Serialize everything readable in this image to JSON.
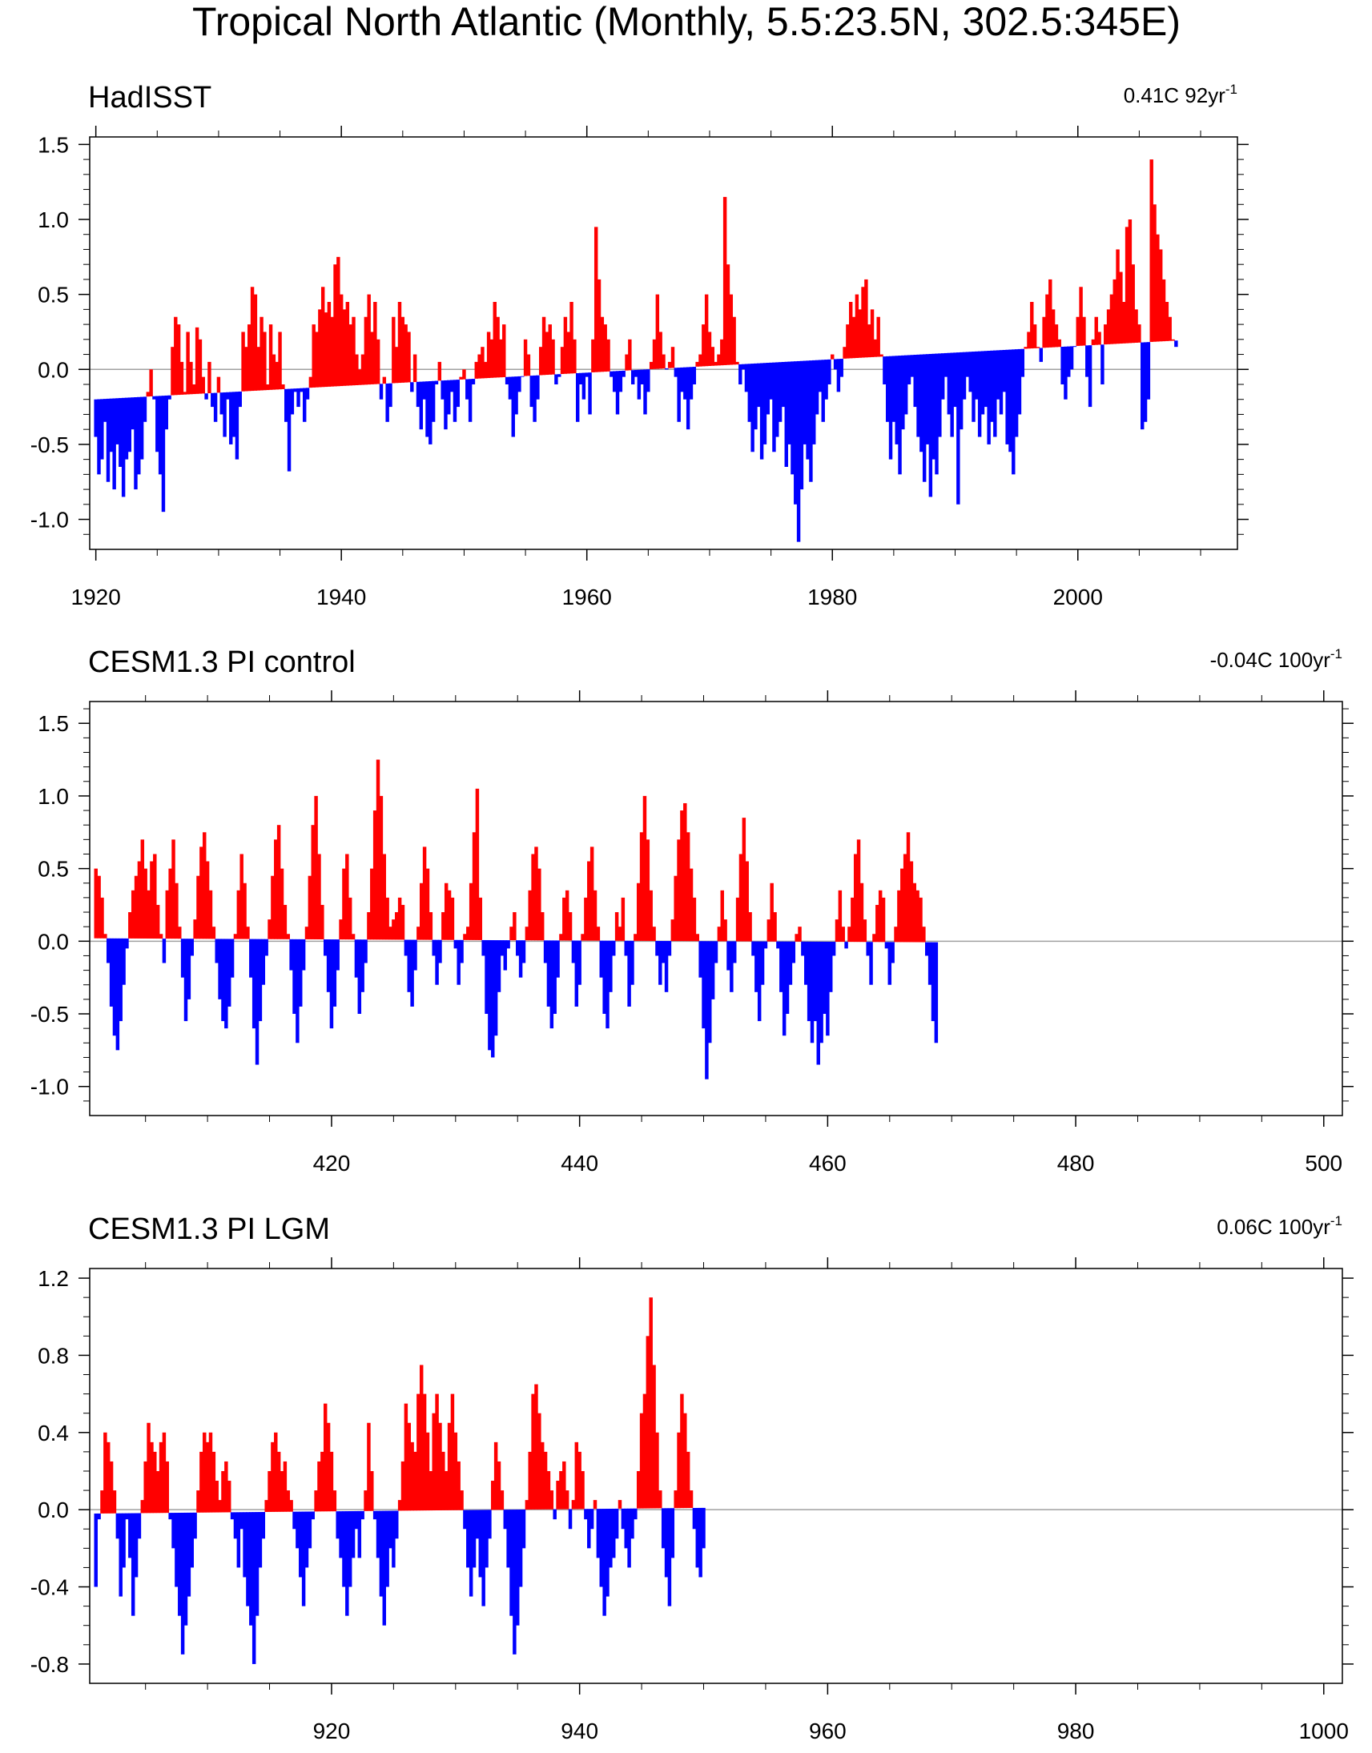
{
  "title": "Tropical North Atlantic (Monthly, 5.5:23.5N, 302.5:345E)",
  "colors": {
    "positive": "#ff0000",
    "negative": "#0000ff",
    "zero_line": "#a0a0a0",
    "frame": "#000000"
  },
  "chart_data": [
    {
      "type": "area",
      "title": "HadISST",
      "trend_label": "0.41C 92yr",
      "trend_label_sup": "-1",
      "trend_total_c": 0.41,
      "xlim": [
        1919.5,
        2013
      ],
      "ylim": [
        -1.2,
        1.55
      ],
      "x_ticks": [
        1920,
        1940,
        1960,
        1980,
        2000
      ],
      "x_tick_labels": [
        "1920",
        "1940",
        "1960",
        "1980",
        "2000"
      ],
      "x_minor_step": 5,
      "y_ticks": [
        -1.0,
        -0.5,
        0.0,
        0.5,
        1.0,
        1.5
      ],
      "y_tick_labels": [
        "-1.0",
        "-0.5",
        "0.0",
        "0.5",
        "1.0",
        "1.5"
      ],
      "y_minor_step": 0.1,
      "baseline": {
        "x": [
          1920.0,
          2012.0
        ],
        "y": [
          -0.2,
          0.21
        ]
      },
      "series": [
        {
          "name": "monthly anomaly",
          "x_start": 1920.0,
          "step_years": 0.25,
          "values": [
            -0.45,
            -0.7,
            -0.6,
            -0.35,
            -0.75,
            -0.55,
            -0.8,
            -0.5,
            -0.65,
            -0.85,
            -0.6,
            -0.55,
            -0.4,
            -0.8,
            -0.7,
            -0.6,
            -0.35,
            -0.15,
            0.0,
            -0.2,
            -0.55,
            -0.7,
            -0.95,
            -0.4,
            -0.2,
            0.15,
            0.35,
            0.3,
            0.05,
            -0.15,
            0.25,
            0.05,
            -0.1,
            0.28,
            0.2,
            -0.05,
            -0.2,
            0.05,
            -0.25,
            -0.35,
            -0.05,
            -0.3,
            -0.45,
            -0.2,
            -0.5,
            -0.45,
            -0.6,
            -0.25,
            0.25,
            0.15,
            0.3,
            0.55,
            0.5,
            0.15,
            0.35,
            0.25,
            -0.1,
            0.3,
            0.1,
            0.05,
            0.25,
            -0.1,
            -0.35,
            -0.68,
            -0.3,
            -0.15,
            -0.25,
            -0.15,
            -0.35,
            -0.2,
            -0.05,
            0.3,
            0.25,
            0.4,
            0.55,
            0.38,
            0.45,
            0.35,
            0.7,
            0.75,
            0.5,
            0.4,
            0.45,
            0.3,
            0.35,
            0.1,
            0.0,
            0.1,
            0.35,
            0.5,
            0.25,
            0.45,
            0.2,
            -0.2,
            -0.05,
            -0.35,
            -0.25,
            0.35,
            0.15,
            0.45,
            0.35,
            0.3,
            0.25,
            -0.15,
            0.1,
            -0.25,
            -0.4,
            -0.2,
            -0.45,
            -0.5,
            -0.35,
            -0.1,
            0.05,
            -0.2,
            -0.4,
            -0.3,
            -0.15,
            -0.35,
            -0.25,
            -0.05,
            0.0,
            -0.2,
            -0.35,
            -0.1,
            0.05,
            0.1,
            0.15,
            0.05,
            0.25,
            0.2,
            0.45,
            0.35,
            0.2,
            0.3,
            -0.1,
            -0.2,
            -0.45,
            -0.3,
            -0.15,
            -0.05,
            0.2,
            0.1,
            -0.25,
            -0.35,
            -0.2,
            0.15,
            0.35,
            0.25,
            0.3,
            0.2,
            -0.1,
            -0.05,
            0.15,
            0.35,
            0.25,
            0.45,
            0.2,
            -0.35,
            -0.1,
            -0.2,
            -0.05,
            -0.3,
            0.2,
            0.95,
            0.6,
            0.35,
            0.3,
            0.2,
            -0.05,
            -0.15,
            -0.3,
            -0.15,
            -0.05,
            0.1,
            0.2,
            -0.1,
            -0.05,
            -0.2,
            -0.1,
            -0.3,
            -0.15,
            0.05,
            0.2,
            0.5,
            0.25,
            0.1,
            0.0,
            0.05,
            0.15,
            -0.05,
            -0.35,
            -0.15,
            -0.2,
            -0.4,
            -0.2,
            -0.1,
            0.05,
            0.1,
            0.3,
            0.5,
            0.25,
            0.15,
            0.05,
            0.1,
            0.2,
            1.15,
            0.7,
            0.5,
            0.35,
            0.05,
            -0.1,
            0.0,
            -0.15,
            -0.35,
            -0.55,
            -0.4,
            -0.25,
            -0.6,
            -0.5,
            -0.3,
            -0.2,
            -0.55,
            -0.45,
            -0.35,
            -0.25,
            -0.65,
            -0.5,
            -0.7,
            -0.9,
            -1.15,
            -0.8,
            -0.5,
            -0.6,
            -0.75,
            -0.5,
            -0.3,
            -0.15,
            -0.35,
            -0.2,
            -0.1,
            0.1,
            0.0,
            -0.15,
            -0.05,
            0.15,
            0.3,
            0.45,
            0.35,
            0.5,
            0.4,
            0.55,
            0.6,
            0.3,
            0.4,
            0.2,
            0.35,
            0.1,
            -0.1,
            -0.35,
            -0.6,
            -0.35,
            -0.5,
            -0.7,
            -0.4,
            -0.3,
            -0.1,
            -0.05,
            -0.25,
            -0.45,
            -0.55,
            -0.75,
            -0.5,
            -0.85,
            -0.6,
            -0.7,
            -0.45,
            -0.2,
            -0.05,
            -0.3,
            -0.45,
            -0.25,
            -0.9,
            -0.4,
            -0.2,
            -0.05,
            -0.15,
            -0.35,
            -0.2,
            -0.45,
            -0.3,
            -0.25,
            -0.5,
            -0.35,
            -0.45,
            -0.2,
            -0.3,
            -0.15,
            -0.5,
            -0.55,
            -0.7,
            -0.45,
            -0.3,
            -0.05,
            0.15,
            0.25,
            0.45,
            0.3,
            0.15,
            0.05,
            0.35,
            0.5,
            0.6,
            0.4,
            0.3,
            0.2,
            -0.1,
            -0.2,
            -0.05,
            0.0,
            0.15,
            0.35,
            0.55,
            0.35,
            -0.05,
            -0.25,
            0.2,
            0.35,
            0.25,
            -0.1,
            0.3,
            0.4,
            0.5,
            0.6,
            0.8,
            0.65,
            0.45,
            0.95,
            1.0,
            0.7,
            0.4,
            0.3,
            -0.4,
            -0.35,
            -0.2,
            1.4,
            1.1,
            0.9,
            0.8,
            0.6,
            0.45,
            0.35,
            0.2,
            0.15
          ]
        }
      ]
    },
    {
      "type": "area",
      "title": "CESM1.3 PI control",
      "trend_label": "-0.04C 100yr",
      "trend_label_sup": "-1",
      "trend_total_c": -0.04,
      "xlim": [
        400.5,
        501.5
      ],
      "ylim": [
        -1.2,
        1.65
      ],
      "x_ticks": [
        420,
        440,
        460,
        480,
        500
      ],
      "x_tick_labels": [
        "420",
        "440",
        "460",
        "480",
        "500"
      ],
      "x_minor_step": 5,
      "y_ticks": [
        -1.0,
        -0.5,
        0.0,
        0.5,
        1.0,
        1.5
      ],
      "y_tick_labels": [
        "-1.0",
        "-0.5",
        "0.0",
        "0.5",
        "1.0",
        "1.5"
      ],
      "y_minor_step": 0.1,
      "baseline": {
        "x": [
          401.0,
          501.0
        ],
        "y": [
          0.02,
          -0.02
        ]
      },
      "series": [
        {
          "name": "monthly anomaly",
          "x_start": 401.0,
          "step_years": 0.25,
          "values": [
            0.5,
            0.45,
            0.3,
            0.05,
            -0.15,
            -0.45,
            -0.65,
            -0.75,
            -0.55,
            -0.3,
            -0.05,
            0.2,
            0.35,
            0.45,
            0.55,
            0.7,
            0.5,
            0.35,
            0.55,
            0.6,
            0.25,
            0.05,
            -0.15,
            0.35,
            0.5,
            0.7,
            0.4,
            0.1,
            -0.25,
            -0.55,
            -0.4,
            -0.1,
            0.15,
            0.45,
            0.65,
            0.75,
            0.55,
            0.35,
            0.1,
            -0.15,
            -0.4,
            -0.55,
            -0.6,
            -0.45,
            -0.25,
            0.05,
            0.35,
            0.6,
            0.4,
            0.1,
            -0.25,
            -0.6,
            -0.85,
            -0.55,
            -0.3,
            -0.1,
            0.15,
            0.45,
            0.7,
            0.8,
            0.5,
            0.25,
            0.05,
            -0.2,
            -0.5,
            -0.7,
            -0.45,
            -0.2,
            0.1,
            0.45,
            0.8,
            1.0,
            0.6,
            0.25,
            -0.1,
            -0.35,
            -0.6,
            -0.45,
            -0.2,
            0.15,
            0.5,
            0.6,
            0.3,
            0.05,
            -0.25,
            -0.5,
            -0.35,
            -0.15,
            0.2,
            0.5,
            0.9,
            1.25,
            1.0,
            0.6,
            0.3,
            0.1,
            0.15,
            0.2,
            0.3,
            0.25,
            -0.1,
            -0.35,
            -0.45,
            -0.2,
            0.1,
            0.4,
            0.65,
            0.5,
            0.2,
            -0.1,
            -0.3,
            -0.15,
            0.2,
            0.4,
            0.35,
            0.3,
            -0.05,
            -0.3,
            -0.15,
            0.05,
            0.1,
            0.4,
            0.75,
            1.05,
            0.3,
            -0.1,
            -0.5,
            -0.75,
            -0.8,
            -0.65,
            -0.35,
            -0.1,
            -0.2,
            -0.05,
            0.1,
            0.2,
            -0.1,
            -0.25,
            -0.15,
            0.1,
            0.35,
            0.6,
            0.65,
            0.5,
            0.2,
            -0.15,
            -0.45,
            -0.6,
            -0.5,
            -0.25,
            0.05,
            0.3,
            0.35,
            0.2,
            -0.15,
            -0.45,
            -0.3,
            0.05,
            0.3,
            0.55,
            0.65,
            0.35,
            0.1,
            -0.25,
            -0.5,
            -0.6,
            -0.35,
            -0.1,
            0.2,
            0.1,
            0.3,
            -0.1,
            -0.45,
            -0.3,
            0.05,
            0.4,
            0.75,
            1.0,
            0.7,
            0.35,
            0.1,
            -0.1,
            -0.3,
            -0.15,
            -0.35,
            -0.1,
            0.15,
            0.45,
            0.7,
            0.9,
            0.95,
            0.75,
            0.5,
            0.3,
            0.05,
            -0.25,
            -0.6,
            -0.95,
            -0.7,
            -0.4,
            -0.15,
            0.1,
            0.35,
            0.15,
            -0.2,
            -0.35,
            -0.15,
            0.3,
            0.6,
            0.85,
            0.55,
            0.2,
            -0.1,
            -0.35,
            -0.55,
            -0.3,
            -0.05,
            0.15,
            0.4,
            0.2,
            -0.05,
            -0.35,
            -0.65,
            -0.5,
            -0.3,
            -0.15,
            0.05,
            0.1,
            -0.1,
            -0.3,
            -0.55,
            -0.7,
            -0.55,
            -0.85,
            -0.7,
            -0.5,
            -0.65,
            -0.35,
            -0.1,
            0.15,
            0.35,
            0.1,
            -0.05,
            0.1,
            0.3,
            0.6,
            0.7,
            0.4,
            0.15,
            -0.1,
            -0.3,
            0.05,
            0.25,
            0.35,
            0.3,
            -0.05,
            -0.3,
            -0.15,
            0.1,
            0.35,
            0.5,
            0.6,
            0.75,
            0.55,
            0.4,
            0.35,
            0.3,
            0.1,
            -0.1,
            -0.3,
            -0.55,
            -0.7
          ]
        }
      ]
    },
    {
      "type": "area",
      "title": "CESM1.3 PI LGM",
      "trend_label": "0.06C 100yr",
      "trend_label_sup": "-1",
      "trend_total_c": 0.06,
      "xlim": [
        900.5,
        1001.5
      ],
      "ylim": [
        -0.9,
        1.25
      ],
      "x_ticks": [
        920,
        940,
        960,
        980,
        1000
      ],
      "x_tick_labels": [
        "920",
        "940",
        "960",
        "980",
        "1000"
      ],
      "x_minor_step": 5,
      "y_ticks": [
        -0.8,
        -0.4,
        0.0,
        0.4,
        0.8,
        1.2
      ],
      "y_tick_labels": [
        "-0.8",
        "-0.4",
        "0.0",
        "0.4",
        "0.8",
        "1.2"
      ],
      "y_minor_step": 0.1,
      "baseline": {
        "x": [
          901.0,
          1001.0
        ],
        "y": [
          -0.02,
          0.04
        ]
      },
      "series": [
        {
          "name": "monthly anomaly",
          "x_start": 901.0,
          "step_years": 0.25,
          "values": [
            -0.4,
            -0.05,
            0.1,
            0.4,
            0.35,
            0.25,
            0.1,
            -0.15,
            -0.45,
            -0.3,
            -0.05,
            -0.25,
            -0.55,
            -0.35,
            -0.15,
            0.05,
            0.25,
            0.45,
            0.35,
            0.3,
            0.2,
            0.35,
            0.4,
            0.25,
            -0.05,
            -0.2,
            -0.4,
            -0.55,
            -0.75,
            -0.6,
            -0.45,
            -0.3,
            -0.15,
            0.1,
            0.3,
            0.4,
            0.35,
            0.4,
            0.3,
            0.15,
            0.05,
            0.2,
            0.25,
            0.15,
            -0.05,
            -0.15,
            -0.3,
            -0.1,
            -0.35,
            -0.5,
            -0.6,
            -0.8,
            -0.55,
            -0.3,
            -0.15,
            0.05,
            0.2,
            0.35,
            0.4,
            0.3,
            0.2,
            0.25,
            0.1,
            0.05,
            -0.1,
            -0.2,
            -0.35,
            -0.5,
            -0.3,
            -0.2,
            -0.05,
            0.1,
            0.25,
            0.3,
            0.55,
            0.45,
            0.3,
            0.1,
            -0.15,
            -0.25,
            -0.4,
            -0.55,
            -0.4,
            -0.25,
            -0.1,
            -0.25,
            -0.05,
            0.1,
            0.45,
            0.2,
            -0.05,
            -0.25,
            -0.45,
            -0.6,
            -0.4,
            -0.2,
            -0.3,
            -0.15,
            0.05,
            0.25,
            0.55,
            0.45,
            0.35,
            0.3,
            0.6,
            0.75,
            0.6,
            0.4,
            0.2,
            0.5,
            0.6,
            0.45,
            0.3,
            0.2,
            0.45,
            0.6,
            0.4,
            0.25,
            0.1,
            -0.1,
            -0.3,
            -0.45,
            -0.3,
            -0.15,
            -0.35,
            -0.5,
            -0.3,
            -0.15,
            0.15,
            0.35,
            0.25,
            0.1,
            -0.1,
            -0.3,
            -0.55,
            -0.75,
            -0.6,
            -0.4,
            -0.2,
            0.05,
            0.3,
            0.6,
            0.65,
            0.5,
            0.35,
            0.3,
            0.2,
            0.1,
            -0.05,
            0.15,
            0.2,
            0.25,
            0.1,
            -0.1,
            0.05,
            0.35,
            0.3,
            0.2,
            -0.05,
            -0.2,
            -0.1,
            0.05,
            -0.25,
            -0.4,
            -0.55,
            -0.45,
            -0.3,
            -0.25,
            -0.15,
            0.05,
            -0.1,
            -0.2,
            -0.3,
            -0.15,
            -0.05,
            0.2,
            0.5,
            0.6,
            0.9,
            1.1,
            0.75,
            0.4,
            0.1,
            -0.2,
            -0.35,
            -0.5,
            -0.25,
            0.1,
            0.4,
            0.6,
            0.5,
            0.3,
            0.1,
            -0.1,
            -0.3,
            -0.35,
            -0.2
          ]
        }
      ]
    }
  ]
}
